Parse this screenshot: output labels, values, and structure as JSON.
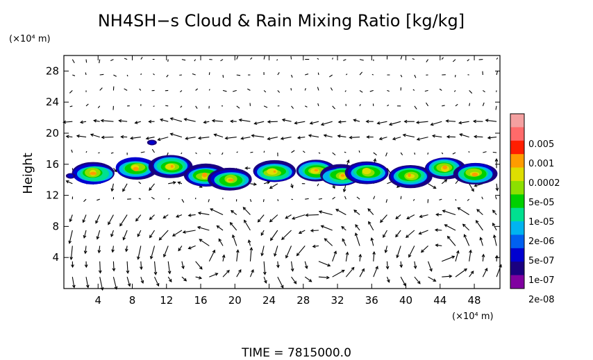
{
  "chart_data": {
    "type": "heatmap",
    "title": "NH4SH−s Cloud & Rain Mixing Ratio [kg/kg]",
    "ylabel": "Height",
    "x_unit": "(×10⁴ m)",
    "y_unit": "(×10⁴ m)",
    "xlim": [
      0,
      51
    ],
    "ylim": [
      0,
      30
    ],
    "x_ticks": [
      "4",
      "8",
      "12",
      "16",
      "20",
      "24",
      "28",
      "32",
      "36",
      "40",
      "44",
      "48"
    ],
    "y_ticks": [
      "4",
      "8",
      "12",
      "16",
      "20",
      "24",
      "28"
    ],
    "colorbar": {
      "labels": [
        "0.005",
        "0.001",
        "0.0002",
        "5e-05",
        "1e-05",
        "2e-06",
        "5e-07",
        "1e-07",
        "2e-08"
      ],
      "colors": [
        "#f4a0a0",
        "#ff6a6a",
        "#ff1e00",
        "#ff9c00",
        "#dede00",
        "#8ce000",
        "#00d000",
        "#00e090",
        "#00b4f0",
        "#0060f0",
        "#0000d0",
        "#1a0080",
        "#8000a0"
      ]
    },
    "cloud_layer": {
      "base_height": 13,
      "top_height": 17,
      "patches": [
        {
          "x": 3.5,
          "y": 14.8,
          "core": 3
        },
        {
          "x": 8.5,
          "y": 15.5,
          "core": 5
        },
        {
          "x": 12.5,
          "y": 15.8,
          "core": 4
        },
        {
          "x": 16.5,
          "y": 14.5,
          "core": 3
        },
        {
          "x": 19.5,
          "y": 14.0,
          "core": 3
        },
        {
          "x": 24.5,
          "y": 15.0,
          "core": 4
        },
        {
          "x": 29.5,
          "y": 15.2,
          "core": 3
        },
        {
          "x": 32.5,
          "y": 14.5,
          "core": 3
        },
        {
          "x": 35.5,
          "y": 15.0,
          "core": 2
        },
        {
          "x": 40.5,
          "y": 14.5,
          "core": 3
        },
        {
          "x": 44.5,
          "y": 15.5,
          "core": 4
        },
        {
          "x": 48.0,
          "y": 14.8,
          "core": 3
        }
      ],
      "isolated": [
        {
          "x": 0.8,
          "y": 14.5
        },
        {
          "x": 10.3,
          "y": 18.8
        }
      ]
    },
    "wind_vectors": "present"
  },
  "footer": {
    "time_label": "TIME  =  7815000.0"
  }
}
